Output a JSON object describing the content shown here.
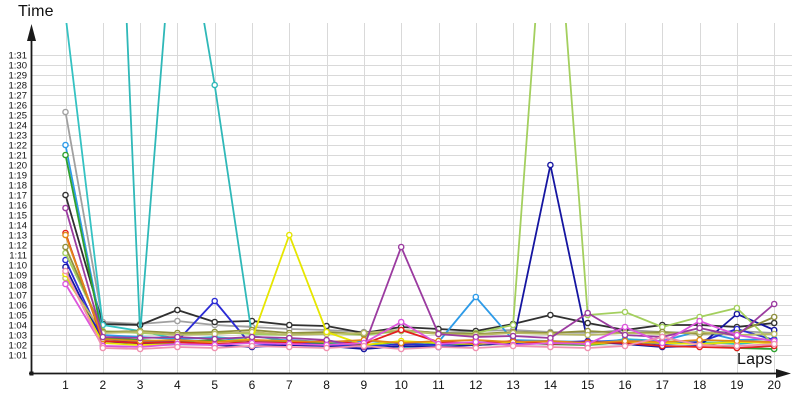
{
  "chart_data": {
    "type": "line",
    "title": "",
    "ylabel": "Time",
    "xlabel": "Laps",
    "legend": "none",
    "grid": true,
    "marker": "open-circle",
    "x_ticks": [
      "1",
      "2",
      "3",
      "4",
      "5",
      "6",
      "7",
      "8",
      "9",
      "10",
      "11",
      "12",
      "13",
      "14",
      "15",
      "16",
      "17",
      "18",
      "19",
      "20"
    ],
    "y_ticks": [
      "1:01",
      "1:02",
      "1:03",
      "1:04",
      "1:05",
      "1:06",
      "1:07",
      "1:08",
      "1:09",
      "1:10",
      "1:11",
      "1:12",
      "1:13",
      "1:14",
      "1:15",
      "1:16",
      "1:17",
      "1:18",
      "1:19",
      "1:20",
      "1:21",
      "1:22",
      "1:23",
      "1:24",
      "1:25",
      "1:26",
      "1:27",
      "1:28",
      "1:29",
      "1:30",
      "1:31"
    ],
    "y_tick_seconds_range": [
      61,
      91
    ],
    "x_range": [
      1,
      20
    ],
    "units": "lap time m:ss, plotted per lap",
    "series": [
      {
        "name": "gray",
        "color": "#A0A0A0",
        "values_seconds": [
          85.3,
          64.3,
          64.1,
          64.4,
          64.0,
          63.8,
          63.6,
          63.5,
          63.3,
          63.5,
          63.2,
          63.4,
          63.5,
          63.3,
          63.2,
          63.5,
          63.3,
          63.2,
          63.4,
          63.2
        ]
      },
      {
        "name": "black",
        "color": "#303030",
        "values_seconds": [
          77.0,
          64.1,
          64.0,
          65.5,
          64.3,
          64.4,
          64.0,
          63.9,
          63.2,
          63.8,
          63.6,
          63.4,
          64.1,
          65.0,
          64.2,
          63.5,
          64.0,
          64.0,
          63.8,
          64.2
        ]
      },
      {
        "name": "turquoise-a",
        "color": "#35C2C2",
        "values_seconds": [
          95.0,
          64.0,
          63.4,
          62.6,
          62.8,
          62.5,
          62.3,
          62.2,
          62.0,
          61.7,
          62.0,
          62.2,
          62.1,
          62.3,
          62.0,
          62.6,
          62.4,
          62.2,
          62.3,
          62.3
        ]
      },
      {
        "name": "turquoise-b",
        "color": "#2FB8B8",
        "values_seconds": [
          150.0,
          150.0,
          63.1,
          110.0,
          88.0,
          62.9,
          62.4,
          62.3,
          62.1,
          61.7,
          62.2,
          62.0,
          62.2,
          62.1,
          62.3,
          62.4,
          62.2,
          62.3,
          62.1,
          62.4
        ]
      },
      {
        "name": "skyblue",
        "color": "#2E9BE8",
        "values_seconds": [
          82.0,
          63.0,
          62.8,
          62.6,
          62.7,
          62.4,
          62.5,
          62.3,
          62.4,
          62.2,
          62.3,
          66.8,
          62.5,
          62.4,
          62.3,
          62.5,
          62.4,
          63.4,
          62.5,
          62.6
        ]
      },
      {
        "name": "green",
        "color": "#2FA12F",
        "values_seconds": [
          81.0,
          62.7,
          62.5,
          62.3,
          62.5,
          62.2,
          62.3,
          62.1,
          62.0,
          62.3,
          62.2,
          62.0,
          62.2,
          62.1,
          62.0,
          62.3,
          62.1,
          62.2,
          61.7,
          61.6
        ]
      },
      {
        "name": "blue",
        "color": "#2B2BD5",
        "values_seconds": [
          70.5,
          62.4,
          62.3,
          62.4,
          66.4,
          61.9,
          62.2,
          62.0,
          61.8,
          62.1,
          62.0,
          62.3,
          62.1,
          62.2,
          62.4,
          62.3,
          62.1,
          62.3,
          63.6,
          62.5
        ]
      },
      {
        "name": "navy",
        "color": "#1515A0",
        "values_seconds": [
          69.8,
          62.2,
          62.1,
          62.2,
          62.0,
          61.8,
          62.0,
          61.9,
          61.6,
          61.9,
          61.8,
          62.0,
          62.2,
          80.0,
          62.3,
          62.1,
          61.8,
          61.9,
          65.1,
          63.5
        ]
      },
      {
        "name": "yellowgreen",
        "color": "#A3CF5E",
        "values_seconds": [
          71.2,
          63.4,
          63.2,
          63.0,
          63.3,
          63.1,
          63.0,
          63.2,
          63.0,
          63.4,
          63.1,
          63.2,
          64.0,
          115.0,
          65.0,
          65.3,
          63.8,
          64.8,
          65.7,
          62.0
        ]
      },
      {
        "name": "olive",
        "color": "#8F8F3D",
        "values_seconds": [
          71.8,
          63.3,
          63.4,
          63.2,
          63.3,
          63.5,
          63.2,
          63.3,
          63.1,
          63.5,
          63.2,
          63.1,
          63.3,
          63.2,
          63.4,
          63.2,
          63.3,
          63.1,
          63.2,
          64.8
        ]
      },
      {
        "name": "khaki",
        "color": "#BBBB66",
        "values_seconds": [
          68.7,
          63.2,
          63.3,
          63.0,
          63.1,
          63.3,
          63.0,
          63.1,
          63.2,
          63.5,
          63.1,
          63.0,
          63.2,
          63.1,
          63.0,
          63.2,
          63.1,
          63.3,
          63.0,
          63.1
        ]
      },
      {
        "name": "yellow",
        "color": "#E6E600",
        "values_seconds": [
          69.1,
          62.2,
          62.0,
          62.1,
          62.3,
          62.6,
          73.0,
          63.3,
          62.0,
          62.4,
          62.2,
          62.1,
          62.3,
          62.2,
          62.1,
          62.3,
          62.2,
          62.1,
          62.3,
          62.2
        ]
      },
      {
        "name": "red",
        "color": "#E32020",
        "values_seconds": [
          73.2,
          62.4,
          62.2,
          62.3,
          62.1,
          62.3,
          62.2,
          62.4,
          62.1,
          63.5,
          62.3,
          62.2,
          62.4,
          62.1,
          62.3,
          62.2,
          61.9,
          61.8,
          61.7,
          61.9
        ]
      },
      {
        "name": "orange",
        "color": "#E08818",
        "values_seconds": [
          73.0,
          62.6,
          62.4,
          62.5,
          62.3,
          62.5,
          62.4,
          62.3,
          62.5,
          62.2,
          62.4,
          62.5,
          62.3,
          62.4,
          62.2,
          62.4,
          62.3,
          62.5,
          62.4,
          62.3
        ]
      },
      {
        "name": "purple",
        "color": "#9B3BA0",
        "values_seconds": [
          75.7,
          62.8,
          62.7,
          62.8,
          62.6,
          62.8,
          62.7,
          62.5,
          61.8,
          71.8,
          63.1,
          62.8,
          62.9,
          62.7,
          65.2,
          63.0,
          62.8,
          63.7,
          62.9,
          66.1
        ]
      },
      {
        "name": "violet",
        "color": "#DD55DD",
        "values_seconds": [
          68.1,
          61.9,
          61.8,
          62.1,
          62.0,
          62.2,
          62.1,
          62.0,
          62.2,
          64.3,
          62.1,
          62.3,
          62.0,
          62.2,
          62.1,
          63.8,
          62.2,
          64.4,
          63.0,
          62.4
        ]
      },
      {
        "name": "pink",
        "color": "#F090B0",
        "values_seconds": [
          69.4,
          61.7,
          61.6,
          61.8,
          61.7,
          61.9,
          61.8,
          61.7,
          61.9,
          61.6,
          61.8,
          61.7,
          61.9,
          61.8,
          61.7,
          61.9,
          62.8,
          62.0,
          61.9,
          62.1
        ]
      }
    ]
  },
  "style_colors": {
    "grid": "#D9D9D9",
    "axis": "#1A1A1A",
    "tick_text": "#111111",
    "background": "#FFFFFF"
  }
}
